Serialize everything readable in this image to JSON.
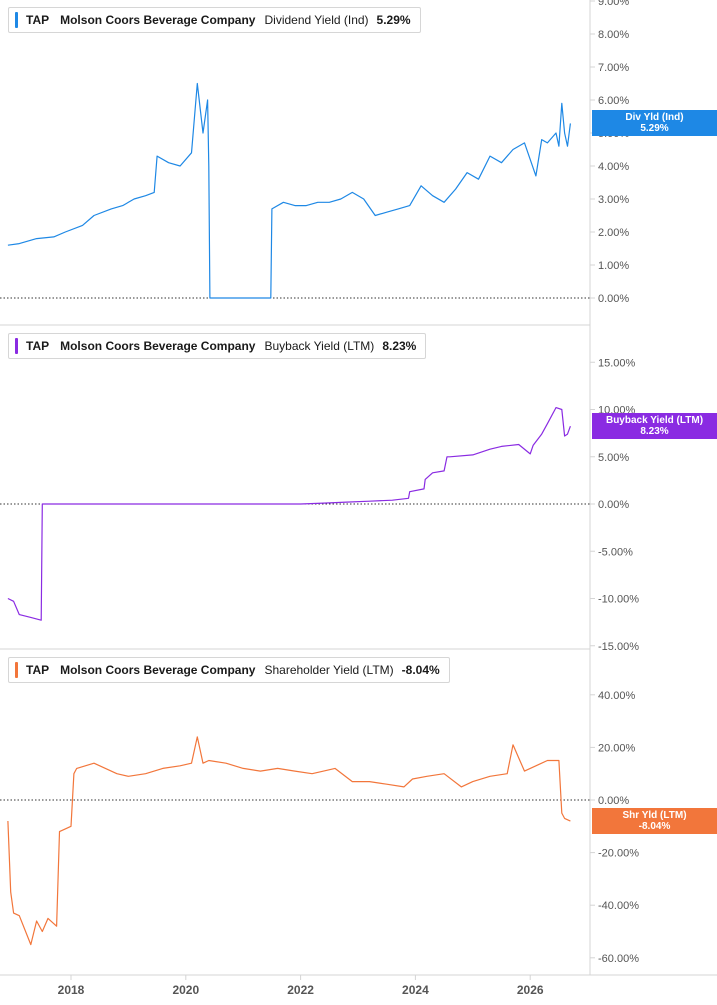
{
  "colors": {
    "dividend": "#1e88e5",
    "buyback": "#8a2be2",
    "shareholder": "#f2763b",
    "grid": "#d4d4d4",
    "axis_text": "#555555"
  },
  "chart_data": [
    {
      "type": "line",
      "ticker": "TAP",
      "company": "Molson Coors Beverage Company",
      "metric": "Dividend Yield (Ind)",
      "current_value": "5.29%",
      "tag_label": "Div Yld (Ind)",
      "ylim": [
        0,
        9
      ],
      "yticks": [
        "9.00%",
        "8.00%",
        "7.00%",
        "6.00%",
        "5.00%",
        "4.00%",
        "3.00%",
        "2.00%",
        "1.00%",
        "0.00%"
      ],
      "ytick_values": [
        9,
        8,
        7,
        6,
        5,
        4,
        3,
        2,
        1,
        0
      ],
      "zero_line": 0,
      "series": [
        {
          "x": [
            2016.9,
            2017.1,
            2017.4,
            2017.7,
            2017.9,
            2018.2,
            2018.4,
            2018.7,
            2018.9,
            2019.1,
            2019.3,
            2019.45,
            2019.5,
            2019.7,
            2019.9,
            2020.1,
            2020.2,
            2020.3,
            2020.38,
            2020.4,
            2020.42,
            2021.48,
            2021.5,
            2021.7,
            2021.9,
            2022.1,
            2022.3,
            2022.5,
            2022.7,
            2022.9,
            2023.1,
            2023.3,
            2023.5,
            2023.7,
            2023.9,
            2024.1,
            2024.3,
            2024.5,
            2024.7,
            2024.9,
            2025.1,
            2025.3,
            2025.5,
            2025.7,
            2025.9,
            2026.1,
            2026.2,
            2026.3,
            2026.45,
            2026.5,
            2026.55,
            2026.6,
            2026.65,
            2026.7
          ],
          "y": [
            1.6,
            1.65,
            1.8,
            1.85,
            2.0,
            2.2,
            2.5,
            2.7,
            2.8,
            3.0,
            3.1,
            3.2,
            4.3,
            4.1,
            4.0,
            4.4,
            6.5,
            5.0,
            6.0,
            4.0,
            0,
            0,
            2.7,
            2.9,
            2.8,
            2.8,
            2.9,
            2.9,
            3.0,
            3.2,
            3.0,
            2.5,
            2.6,
            2.7,
            2.8,
            3.4,
            3.1,
            2.9,
            3.3,
            3.8,
            3.6,
            4.3,
            4.1,
            4.5,
            4.7,
            3.7,
            4.8,
            4.7,
            5.0,
            4.6,
            5.9,
            5.0,
            4.6,
            5.29
          ]
        }
      ]
    },
    {
      "type": "line",
      "ticker": "TAP",
      "company": "Molson Coors Beverage Company",
      "metric": "Buyback Yield (LTM)",
      "current_value": "8.23%",
      "tag_label": "Buyback Yield (LTM)",
      "ylim": [
        -15,
        15
      ],
      "yticks": [
        "15.00%",
        "10.00%",
        "5.00%",
        "0.00%",
        "-5.00%",
        "-10.00%",
        "-15.00%"
      ],
      "ytick_values": [
        15,
        10,
        5,
        0,
        -5,
        -10,
        -15
      ],
      "zero_line": 0,
      "series": [
        {
          "x": [
            2016.9,
            2017.0,
            2017.1,
            2017.3,
            2017.48,
            2017.5,
            2018.0,
            2019.0,
            2020.0,
            2021.0,
            2022.0,
            2022.4,
            2022.8,
            2023.2,
            2023.6,
            2023.88,
            2023.9,
            2024.15,
            2024.17,
            2024.3,
            2024.5,
            2024.55,
            2024.6,
            2025.0,
            2025.3,
            2025.5,
            2025.8,
            2026.0,
            2026.05,
            2026.2,
            2026.3,
            2026.45,
            2026.55,
            2026.6,
            2026.65,
            2026.7
          ],
          "y": [
            -10.0,
            -10.3,
            -11.7,
            -12.0,
            -12.3,
            0,
            0,
            0,
            0,
            0,
            0,
            0.1,
            0.2,
            0.3,
            0.4,
            0.6,
            1.3,
            1.6,
            2.6,
            3.3,
            3.5,
            5.0,
            5.0,
            5.2,
            5.8,
            6.1,
            6.3,
            5.3,
            6.2,
            7.4,
            8.5,
            10.2,
            10.0,
            7.2,
            7.4,
            8.23
          ]
        }
      ]
    },
    {
      "type": "line",
      "ticker": "TAP",
      "company": "Molson Coors Beverage Company",
      "metric": "Shareholder Yield (LTM)",
      "current_value": "-8.04%",
      "tag_label": "Shr Yld (LTM)",
      "ylim": [
        -65,
        45
      ],
      "yticks": [
        "40.00%",
        "20.00%",
        "0.00%",
        "-20.00%",
        "-40.00%",
        "-60.00%"
      ],
      "ytick_values": [
        40,
        20,
        0,
        -20,
        -40,
        -60
      ],
      "zero_line": 0,
      "series": [
        {
          "x": [
            2016.9,
            2016.95,
            2017.0,
            2017.1,
            2017.3,
            2017.4,
            2017.5,
            2017.6,
            2017.75,
            2017.8,
            2017.9,
            2018.0,
            2018.05,
            2018.1,
            2018.4,
            2018.8,
            2019.0,
            2019.3,
            2019.6,
            2019.9,
            2020.1,
            2020.2,
            2020.3,
            2020.4,
            2020.7,
            2021.0,
            2021.3,
            2021.6,
            2021.9,
            2022.2,
            2022.4,
            2022.6,
            2022.9,
            2023.2,
            2023.5,
            2023.8,
            2023.95,
            2024.2,
            2024.5,
            2024.8,
            2025.0,
            2025.3,
            2025.6,
            2025.7,
            2025.8,
            2025.9,
            2026.1,
            2026.3,
            2026.5,
            2026.55,
            2026.6,
            2026.7
          ],
          "y": [
            -8.0,
            -35.0,
            -43.0,
            -44.0,
            -55.0,
            -46.0,
            -50.0,
            -45.0,
            -48.0,
            -12.0,
            -11.0,
            -10.0,
            10.0,
            12.0,
            14.0,
            10.0,
            9.0,
            10.0,
            12.0,
            13.0,
            14.0,
            24.0,
            14.0,
            15.0,
            14.0,
            12.0,
            11.0,
            12.0,
            11.0,
            10.0,
            11.0,
            12.0,
            7.0,
            7.0,
            6.0,
            5.0,
            8.0,
            9.0,
            10.0,
            5.0,
            7.0,
            9.0,
            10.0,
            21.0,
            16.0,
            11.0,
            13.0,
            15.0,
            15.0,
            -5.0,
            -7.0,
            -8.04
          ]
        }
      ]
    }
  ],
  "x_axis": {
    "ticks": [
      "2018",
      "2020",
      "2022",
      "2024",
      "2026"
    ],
    "tick_values": [
      2018,
      2020,
      2022,
      2024,
      2026
    ]
  }
}
